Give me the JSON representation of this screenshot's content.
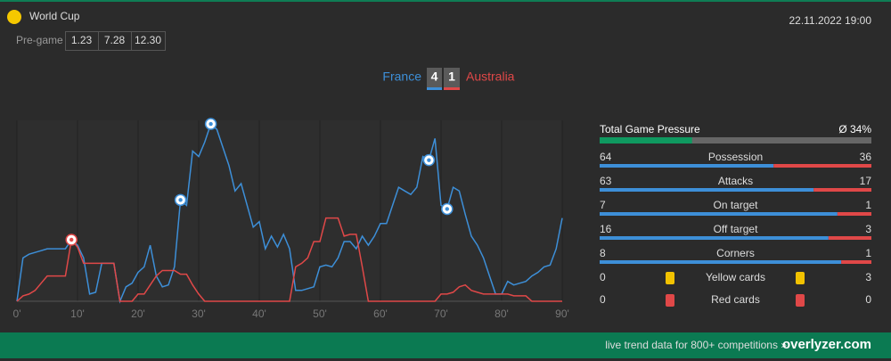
{
  "header": {
    "competition": "World Cup",
    "datetime": "22.11.2022 19:00",
    "pregame_label": "Pre-game",
    "odds": [
      "1.23",
      "7.28",
      "12.30"
    ]
  },
  "score": {
    "home": "France",
    "away": "Australia",
    "home_goals": 4,
    "away_goals": 1
  },
  "chart_data": {
    "type": "line",
    "x": [
      0,
      1,
      2,
      3,
      4,
      5,
      6,
      7,
      8,
      9,
      10,
      11,
      12,
      13,
      14,
      15,
      16,
      17,
      18,
      19,
      20,
      21,
      22,
      23,
      24,
      25,
      26,
      27,
      28,
      29,
      30,
      31,
      32,
      33,
      34,
      35,
      36,
      37,
      38,
      39,
      40,
      41,
      42,
      43,
      44,
      45,
      46,
      47,
      48,
      49,
      50,
      51,
      52,
      53,
      54,
      55,
      56,
      57,
      58,
      59,
      60,
      61,
      62,
      63,
      64,
      65,
      66,
      67,
      68,
      69,
      70,
      71,
      72,
      73,
      74,
      75,
      76,
      77,
      78,
      79,
      80,
      81,
      82,
      83,
      84,
      85,
      86,
      87,
      88,
      89,
      90
    ],
    "xlim": [
      0,
      90
    ],
    "ylim": [
      0,
      100
    ],
    "xticks": [
      {
        "value": 0,
        "label": "0'"
      },
      {
        "value": 10,
        "label": "10'"
      },
      {
        "value": 20,
        "label": "20'"
      },
      {
        "value": 30,
        "label": "30'"
      },
      {
        "value": 40,
        "label": "40'"
      },
      {
        "value": 50,
        "label": "50'"
      },
      {
        "value": 60,
        "label": "60'"
      },
      {
        "value": 70,
        "label": "70'"
      },
      {
        "value": 80,
        "label": "80'"
      },
      {
        "value": 90,
        "label": "90'"
      }
    ],
    "series": [
      {
        "color": "#3d8fd8",
        "goals": [
          27,
          32,
          68,
          71
        ],
        "values": [
          0,
          24,
          26,
          27,
          28,
          29,
          29,
          29,
          29,
          34,
          31,
          24,
          4,
          5,
          21,
          21,
          21,
          0,
          8,
          10,
          16,
          19,
          31,
          14,
          8,
          9,
          19,
          56,
          53,
          83,
          80,
          88,
          98,
          95,
          85,
          75,
          61,
          65,
          53,
          41,
          44,
          29,
          36,
          30,
          37,
          29,
          6,
          6,
          7,
          8,
          19,
          20,
          19,
          24,
          33,
          33,
          29,
          36,
          31,
          36,
          43,
          43,
          53,
          63,
          61,
          59,
          63,
          80,
          78,
          90,
          53,
          51,
          63,
          61,
          48,
          36,
          31,
          24,
          14,
          4,
          4,
          11,
          9,
          10,
          11,
          14,
          16,
          19,
          20,
          29,
          46
        ]
      },
      {
        "color": "#e04848",
        "goals": [
          9
        ],
        "values": [
          0,
          3,
          4,
          6,
          10,
          14,
          14,
          14,
          14,
          34,
          30,
          21,
          21,
          21,
          21,
          21,
          21,
          0,
          0,
          0,
          4,
          4,
          9,
          14,
          17,
          17,
          17,
          15,
          15,
          9,
          4,
          0,
          0,
          0,
          0,
          0,
          0,
          0,
          0,
          0,
          0,
          0,
          0,
          0,
          0,
          0,
          19,
          21,
          24,
          33,
          33,
          46,
          46,
          46,
          36,
          37,
          37,
          19,
          0,
          0,
          0,
          0,
          0,
          0,
          0,
          0,
          0,
          0,
          0,
          0,
          4,
          4,
          5,
          8,
          9,
          6,
          5,
          4,
          4,
          4,
          4,
          4,
          3,
          3,
          3,
          0,
          0,
          0,
          0,
          0,
          0
        ]
      }
    ]
  },
  "stats": {
    "pressure": {
      "label": "Total Game Pressure",
      "value": 34,
      "value_label": "Ø 34%"
    },
    "rows": [
      {
        "label": "Possession",
        "home": 64,
        "away": 36
      },
      {
        "label": "Attacks",
        "home": 63,
        "away": 17
      },
      {
        "label": "On target",
        "home": 7,
        "away": 1
      },
      {
        "label": "Off target",
        "home": 16,
        "away": 3
      },
      {
        "label": "Corners",
        "home": 8,
        "away": 1
      }
    ],
    "cards": [
      {
        "label": "Yellow cards",
        "home": 0,
        "away": 3,
        "color": "#f2c200"
      },
      {
        "label": "Red cards",
        "home": 0,
        "away": 0,
        "color": "#e04848"
      }
    ]
  },
  "footer": {
    "text": "live trend data for 800+ competitions »",
    "brand": "overlyzer.com"
  }
}
